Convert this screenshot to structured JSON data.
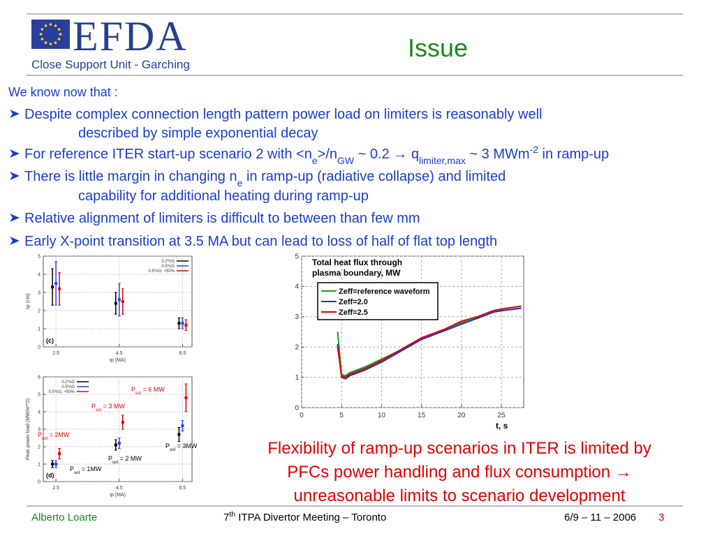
{
  "header": {
    "logo_text": "EFDA",
    "logo_subtitle": "Close Support Unit - Garching",
    "title": "Issue"
  },
  "intro": "We know now that :",
  "bullets": [
    {
      "lines": [
        [
          "Despite complex connection length pattern power load on limiters is reasonably well"
        ],
        [
          "described by simple exponential decay"
        ]
      ]
    },
    {
      "lines": [
        [
          "For reference ITER start-up scenario 2 with <n",
          {
            "text": "e",
            "script": "sub"
          },
          ">/n",
          {
            "text": "GW",
            "script": "sub"
          },
          " ~ 0.2  → q",
          {
            "text": "limiter,max",
            "script": "sub"
          },
          " ~ 3 MWm",
          {
            "text": "-2",
            "script": "super"
          },
          " in ramp-up"
        ]
      ]
    },
    {
      "lines": [
        [
          " There is little margin in changing n",
          {
            "text": "e",
            "script": "sub"
          },
          " in ramp-up (radiative collapse) and limited"
        ],
        [
          "capability for additional heating during ramp-up"
        ]
      ]
    },
    {
      "lines": [
        [
          "Relative alignment of limiters is difficult to between than few mm"
        ]
      ]
    },
    {
      "lines": [
        [
          "Early X-point transition at 3.5 MA but can lead to loss of half of flat top length"
        ]
      ]
    }
  ],
  "conclusion": [
    "Flexibility of ramp-up scenarios in ITER is limited by",
    "PFCs power handling and flux consumption →",
    "unreasonable limits to scenario development"
  ],
  "footer": {
    "author": "Alberto Loarte",
    "meeting": [
      "7",
      {
        "text": "th",
        "script": "super"
      },
      "   ITPA Divertor Meeting – Toronto"
    ],
    "date": "6/9 – 11 – 2006",
    "page": 3
  },
  "chart_data": [
    {
      "type": "errorbar",
      "panel_label": "(c)",
      "xlabel": "Ip (MA)",
      "ylabel": "λp (cm)",
      "x": [
        2.5,
        4.5,
        6.5
      ],
      "xlim": [
        2.1,
        6.8
      ],
      "xticks": [
        2.5,
        4.5,
        6.5
      ],
      "ylim": [
        0,
        5
      ],
      "yticks": [
        0,
        1,
        2,
        3,
        4,
        5
      ],
      "grid": true,
      "legend": "upper right",
      "series": [
        {
          "name": "0.2*nG",
          "color": "#000000",
          "values": [
            3.3,
            2.4,
            1.3
          ],
          "errors": [
            1.0,
            0.6,
            0.3
          ]
        },
        {
          "name": "0.5*nG",
          "color": "#1f3fff",
          "values": [
            3.5,
            2.6,
            1.3
          ],
          "errors": [
            1.2,
            0.9,
            0.3
          ]
        },
        {
          "name": "0.5*nG, +50%",
          "color": "#e00000",
          "values": [
            3.2,
            2.5,
            1.2
          ],
          "errors": [
            0.9,
            0.7,
            0.3
          ]
        }
      ]
    },
    {
      "type": "errorbar",
      "panel_label": "(d)",
      "xlabel": "Ip (MA)",
      "ylabel": "Peak power load (MW/m**2)",
      "x": [
        2.5,
        4.5,
        6.5
      ],
      "xlim": [
        2.1,
        6.8
      ],
      "xticks": [
        2.5,
        4.5,
        6.5
      ],
      "ylim": [
        0,
        6
      ],
      "yticks": [
        0,
        1,
        2,
        3,
        4,
        5,
        6
      ],
      "grid": true,
      "legend": "upper left",
      "series": [
        {
          "name": "0.2*nG",
          "color": "#000000",
          "values": [
            1.0,
            2.1,
            2.7
          ],
          "errors": [
            0.2,
            0.3,
            0.4
          ]
        },
        {
          "name": "0.5*nG",
          "color": "#1f3fff",
          "values": [
            1.0,
            2.2,
            3.2
          ],
          "errors": [
            0.2,
            0.3,
            0.3
          ]
        },
        {
          "name": "0.5*nG, +50%",
          "color": "#e00000",
          "values": [
            1.6,
            3.4,
            4.8
          ],
          "errors": [
            0.3,
            0.4,
            0.8
          ]
        }
      ],
      "annotations": [
        {
          "color": "#e00000",
          "runs": [
            "P",
            {
              "text": "sol",
              "script": "sub"
            },
            " = 6 MW"
          ]
        },
        {
          "color": "#e00000",
          "runs": [
            "P",
            {
              "text": "sol",
              "script": "sub"
            },
            " = 3 MW"
          ]
        },
        {
          "color": "#e00000",
          "runs": [
            "P",
            {
              "text": "sol",
              "script": "sub"
            },
            " = 2MW"
          ]
        },
        {
          "color": "#000000",
          "runs": [
            "P",
            {
              "text": "sol",
              "script": "sub"
            },
            " = 3MW"
          ]
        },
        {
          "color": "#000000",
          "runs": [
            "P",
            {
              "text": "sol",
              "script": "sub"
            },
            " = 2 MW"
          ]
        },
        {
          "color": "#000000",
          "runs": [
            "P",
            {
              "text": "sol",
              "script": "sub"
            },
            " = 1MW"
          ]
        }
      ]
    },
    {
      "type": "line",
      "title": [
        "Total heat flux through",
        "plasma boundary, MW"
      ],
      "xlabel": "t, s",
      "x": [
        4.5,
        5,
        5.5,
        6,
        8,
        10,
        12,
        15,
        18,
        20,
        22,
        24,
        25,
        27.5
      ],
      "xlim": [
        0,
        27.8
      ],
      "xticks": [
        0,
        5,
        10,
        15,
        20,
        25
      ],
      "ylim": [
        0,
        5
      ],
      "yticks": [
        0,
        1,
        2,
        3,
        4,
        5
      ],
      "grid": true,
      "legend": "upper left",
      "series": [
        {
          "name": "Zeff=reference waveform",
          "color": "#1aa01a",
          "values": [
            2.5,
            1.1,
            1.05,
            1.15,
            1.35,
            1.6,
            1.85,
            2.3,
            2.6,
            2.8,
            2.95,
            3.15,
            3.2,
            3.28
          ]
        },
        {
          "name": "Zeff=2.0",
          "color": "#1f2fd0",
          "values": [
            2.1,
            1.0,
            0.95,
            1.05,
            1.25,
            1.5,
            1.8,
            2.25,
            2.55,
            2.75,
            2.95,
            3.15,
            3.2,
            3.28
          ]
        },
        {
          "name": "Zeff=2.5",
          "color": "#e00000",
          "values": [
            2.0,
            1.05,
            1.0,
            1.1,
            1.3,
            1.55,
            1.85,
            2.3,
            2.6,
            2.85,
            3.0,
            3.2,
            3.25,
            3.35
          ]
        }
      ]
    }
  ]
}
